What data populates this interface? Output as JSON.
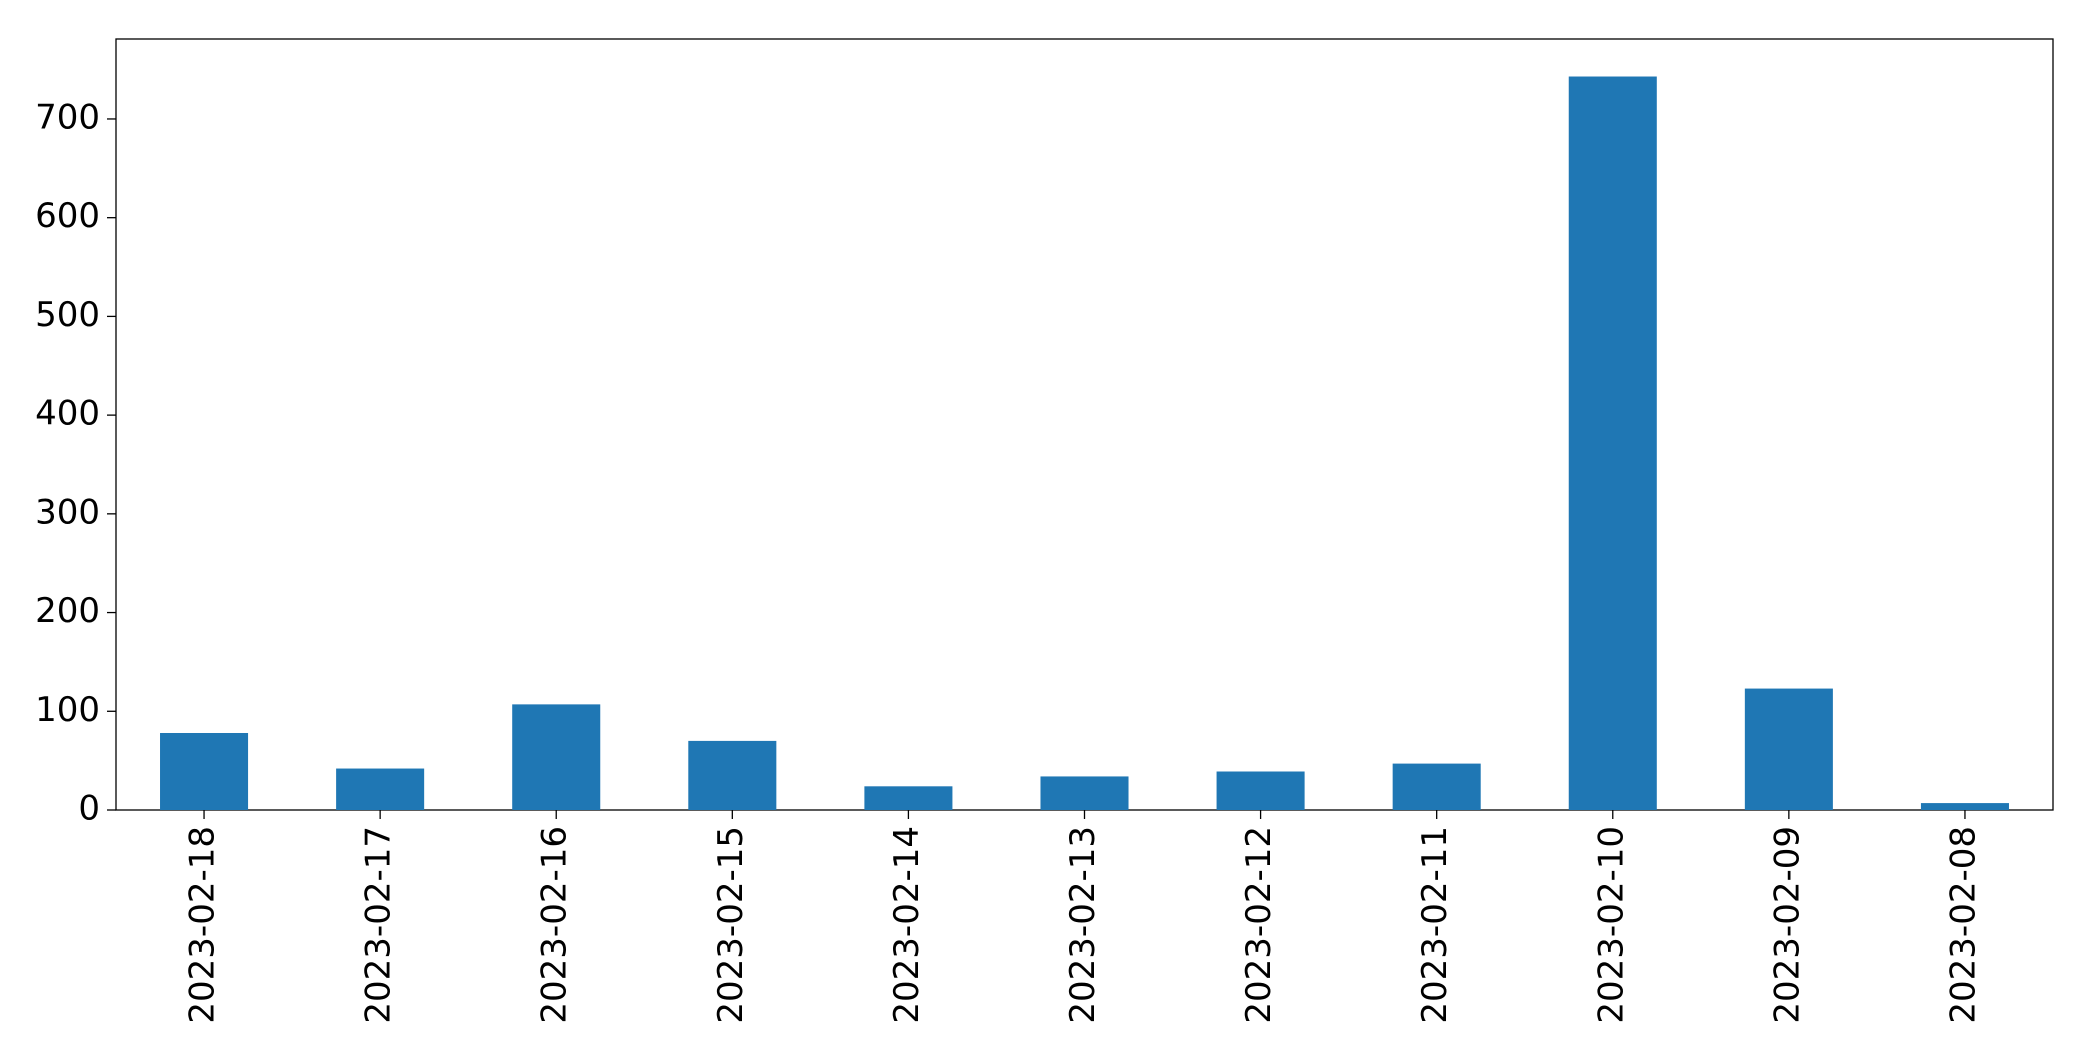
{
  "chart_data": {
    "type": "bar",
    "categories": [
      "2023-02-18",
      "2023-02-17",
      "2023-02-16",
      "2023-02-15",
      "2023-02-14",
      "2023-02-13",
      "2023-02-12",
      "2023-02-11",
      "2023-02-10",
      "2023-02-09",
      "2023-02-08"
    ],
    "values": [
      78,
      42,
      107,
      70,
      24,
      34,
      39,
      47,
      743,
      123,
      7
    ],
    "color": "#1f77b4",
    "ylim": [
      0,
      781
    ],
    "yticks": [
      0,
      100,
      200,
      300,
      400,
      500,
      600,
      700
    ],
    "grid": false
  }
}
